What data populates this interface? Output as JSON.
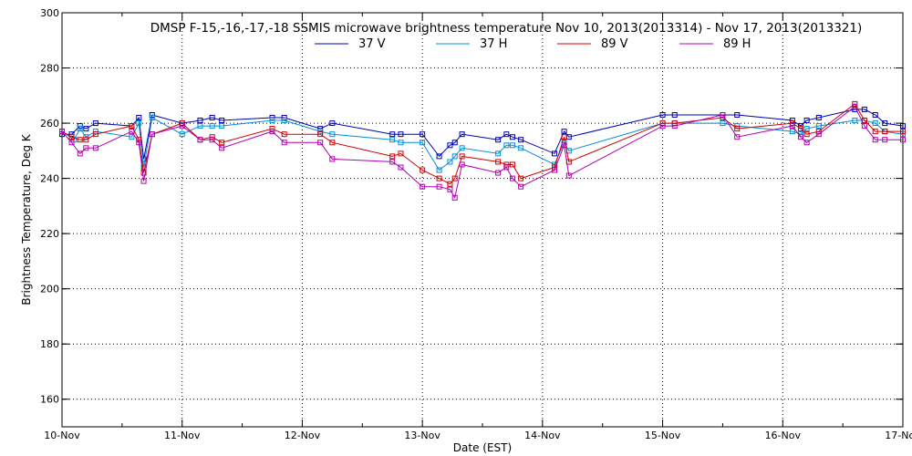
{
  "chart_data": {
    "type": "line",
    "title": "DMSP F-15,-16,-17,-18 SSMIS microwave brightness temperature Nov 10, 2013(2013314) - Nov 17, 2013(2013321)",
    "xlabel": "Date (EST)",
    "ylabel": "Brightness Temperature, Deg K",
    "xlim": [
      0,
      7
    ],
    "ylim": [
      150,
      300
    ],
    "x_ticks": [
      {
        "value": 0,
        "label": "10-Nov"
      },
      {
        "value": 1,
        "label": "11-Nov"
      },
      {
        "value": 2,
        "label": "12-Nov"
      },
      {
        "value": 3,
        "label": "13-Nov"
      },
      {
        "value": 4,
        "label": "14-Nov"
      },
      {
        "value": 5,
        "label": "15-Nov"
      },
      {
        "value": 6,
        "label": "16-Nov"
      },
      {
        "value": 7,
        "label": "17-Nov"
      }
    ],
    "y_ticks": [
      160,
      180,
      200,
      220,
      240,
      260,
      280,
      300
    ],
    "grid": true,
    "legend_position": "top-center",
    "series": [
      {
        "name": "37 V",
        "color": "#0000b4",
        "x": [
          0.0,
          0.08,
          0.15,
          0.2,
          0.28,
          0.58,
          0.64,
          0.68,
          0.75,
          1.0,
          1.15,
          1.25,
          1.33,
          1.75,
          1.85,
          2.15,
          2.25,
          2.75,
          2.82,
          3.0,
          3.14,
          3.23,
          3.27,
          3.33,
          3.63,
          3.7,
          3.75,
          3.82,
          4.1,
          4.18,
          4.22,
          5.0,
          5.1,
          5.5,
          5.62,
          6.08,
          6.15,
          6.2,
          6.3,
          6.6,
          6.68,
          6.77,
          6.85,
          7.0
        ],
        "y": [
          256,
          256,
          259,
          258,
          260,
          259,
          262,
          247,
          263,
          260,
          261,
          262,
          261,
          262,
          262,
          258,
          260,
          256,
          256,
          256,
          248,
          252,
          253,
          256,
          254,
          256,
          255,
          254,
          249,
          257,
          255,
          263,
          263,
          263,
          263,
          261,
          259,
          261,
          262,
          265,
          265,
          263,
          260,
          259
        ]
      },
      {
        "name": "37 H",
        "color": "#0090d8",
        "x": [
          0.0,
          0.1,
          0.15,
          0.2,
          0.28,
          0.58,
          0.64,
          0.68,
          0.75,
          1.0,
          1.15,
          1.25,
          1.33,
          1.75,
          1.85,
          2.15,
          2.25,
          2.75,
          2.82,
          3.0,
          3.14,
          3.23,
          3.27,
          3.33,
          3.63,
          3.7,
          3.75,
          3.82,
          4.1,
          4.18,
          4.22,
          5.0,
          5.1,
          5.5,
          5.62,
          6.08,
          6.15,
          6.2,
          6.3,
          6.6,
          6.68,
          6.77,
          6.85,
          7.0
        ],
        "y": [
          257,
          254,
          258,
          255,
          257,
          255,
          260,
          244,
          262,
          256,
          259,
          259,
          259,
          261,
          261,
          257,
          256,
          254,
          253,
          253,
          243,
          246,
          248,
          251,
          249,
          252,
          252,
          251,
          245,
          253,
          250,
          260,
          260,
          260,
          259,
          257,
          256,
          258,
          259,
          261,
          261,
          260,
          257,
          256
        ]
      },
      {
        "name": "89 V",
        "color": "#d00000",
        "x": [
          0.0,
          0.08,
          0.15,
          0.2,
          0.28,
          0.58,
          0.64,
          0.68,
          0.75,
          1.0,
          1.15,
          1.25,
          1.33,
          1.75,
          1.85,
          2.15,
          2.25,
          2.75,
          2.82,
          3.0,
          3.14,
          3.23,
          3.27,
          3.33,
          3.63,
          3.7,
          3.75,
          3.82,
          4.1,
          4.18,
          4.22,
          5.0,
          5.1,
          5.5,
          5.62,
          6.08,
          6.15,
          6.2,
          6.3,
          6.6,
          6.68,
          6.77,
          6.85,
          7.0
        ],
        "y": [
          257,
          255,
          254,
          254,
          256,
          259,
          254,
          242,
          256,
          260,
          254,
          255,
          253,
          258,
          256,
          256,
          253,
          248,
          249,
          243,
          240,
          238,
          240,
          248,
          246,
          245,
          245,
          240,
          244,
          255,
          246,
          260,
          260,
          262,
          258,
          260,
          258,
          256,
          257,
          267,
          261,
          257,
          257,
          257
        ]
      },
      {
        "name": "89 H",
        "color": "#b000b0",
        "x": [
          0.0,
          0.08,
          0.15,
          0.2,
          0.28,
          0.58,
          0.64,
          0.68,
          0.75,
          1.0,
          1.15,
          1.25,
          1.33,
          1.75,
          1.85,
          2.15,
          2.25,
          2.75,
          2.82,
          3.0,
          3.14,
          3.23,
          3.27,
          3.33,
          3.63,
          3.7,
          3.75,
          3.82,
          4.1,
          4.18,
          4.22,
          5.0,
          5.1,
          5.5,
          5.62,
          6.08,
          6.15,
          6.2,
          6.3,
          6.6,
          6.68,
          6.77,
          6.85,
          7.0
        ],
        "y": [
          257,
          253,
          249,
          251,
          251,
          257,
          253,
          239,
          256,
          259,
          254,
          254,
          251,
          257,
          253,
          253,
          247,
          246,
          244,
          237,
          237,
          236,
          233,
          245,
          242,
          244,
          240,
          237,
          243,
          252,
          241,
          259,
          259,
          263,
          255,
          259,
          255,
          253,
          256,
          266,
          259,
          254,
          254,
          254
        ]
      }
    ]
  }
}
